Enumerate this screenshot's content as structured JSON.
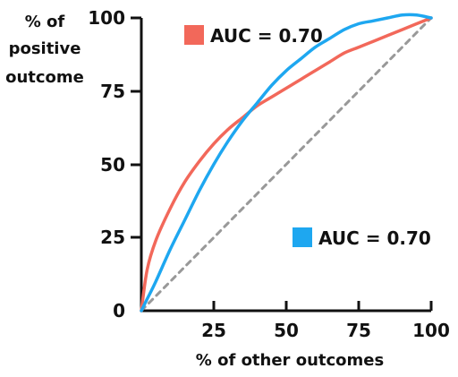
{
  "chart_data": {
    "type": "line",
    "xlabel": "% of other outcomes",
    "ylabel_lines": [
      "% of",
      "positive",
      "outcome"
    ],
    "xlim": [
      0,
      100
    ],
    "ylim": [
      0,
      100
    ],
    "x_ticks": [
      "25",
      "50",
      "75",
      "100"
    ],
    "y_ticks": [
      "0",
      "25",
      "50",
      "75",
      "100"
    ],
    "grid": false,
    "series": [
      {
        "name": "AUC = 0.70",
        "color": "#f2685a",
        "x": [
          0,
          2,
          5,
          10,
          15,
          20,
          25,
          30,
          35,
          40,
          45,
          50,
          55,
          60,
          65,
          70,
          75,
          80,
          85,
          90,
          95,
          100
        ],
        "y": [
          0,
          14,
          24,
          35,
          44,
          51,
          57,
          62,
          66,
          70,
          73,
          76,
          79,
          82,
          85,
          88,
          90,
          92,
          94,
          96,
          98,
          100
        ]
      },
      {
        "name": "AUC = 0.70",
        "color": "#1ea7f0",
        "x": [
          0,
          2,
          5,
          10,
          15,
          20,
          25,
          30,
          35,
          40,
          45,
          50,
          55,
          60,
          65,
          70,
          75,
          80,
          85,
          90,
          95,
          100
        ],
        "y": [
          0,
          4,
          10,
          21,
          31,
          41,
          50,
          58,
          65,
          71,
          77,
          82,
          86,
          90,
          93,
          96,
          98,
          99,
          100,
          101,
          101,
          100
        ]
      },
      {
        "name": "",
        "color": "#999999",
        "dashed": true,
        "x": [
          0,
          100
        ],
        "y": [
          0,
          100
        ]
      }
    ],
    "legend": [
      {
        "label": "AUC = 0.70",
        "color": "#f2685a",
        "placement": "top-left"
      },
      {
        "label": "AUC = 0.70",
        "color": "#1ea7f0",
        "placement": "bottom-right"
      }
    ]
  }
}
